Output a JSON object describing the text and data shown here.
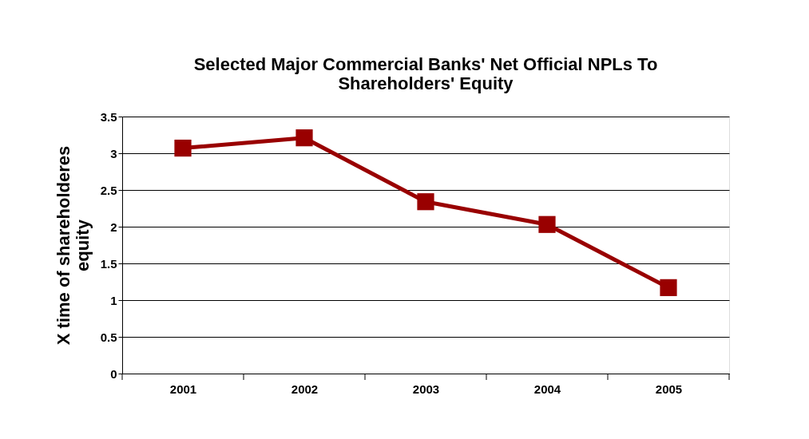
{
  "chart_data": {
    "type": "line",
    "title": "Selected Major Commercial Banks' Net Official NPLs To Shareholders' Equity",
    "ylabel": "X time of shareholderes equity",
    "categories": [
      "2001",
      "2002",
      "2003",
      "2004",
      "2005"
    ],
    "series": [
      {
        "color": "#990000",
        "values": [
          3.07,
          3.21,
          2.34,
          2.03,
          1.17
        ]
      }
    ],
    "ylim": [
      0,
      3.5
    ],
    "yticks": [
      0,
      0.5,
      1,
      1.5,
      2,
      2.5,
      3,
      3.5
    ],
    "grid": "y",
    "marker": "square",
    "line_style": "solid",
    "legend": false
  }
}
